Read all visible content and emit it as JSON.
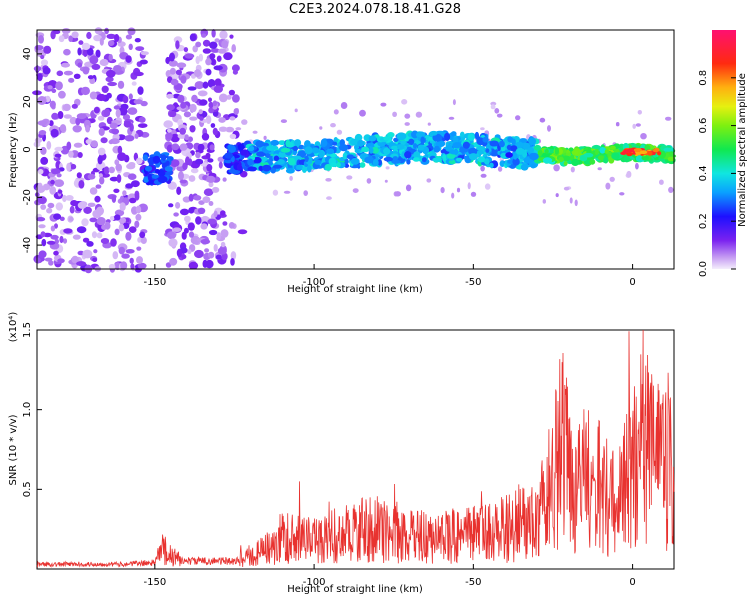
{
  "title": "C2E3.2024.078.18.41.G28",
  "chart_data": [
    {
      "type": "heatmap",
      "xlabel": "Height of straight line (km)",
      "ylabel": "Frequency (Hz)",
      "xlim": [
        -187,
        13
      ],
      "ylim": [
        -50,
        50
      ],
      "xticks": [
        -150,
        -100,
        -50,
        0
      ],
      "yticks": [
        -40,
        -20,
        0,
        20,
        40
      ],
      "colorbar": {
        "label": "Normalized spectral amplitude",
        "ticks": [
          "0.0",
          "0.2",
          "0.4",
          "0.6",
          "0.8"
        ],
        "range": [
          0,
          1
        ]
      },
      "band_center": [
        {
          "x": -150,
          "y": -8
        },
        {
          "x": -120,
          "y": -3
        },
        {
          "x": -100,
          "y": -3
        },
        {
          "x": -80,
          "y": 0
        },
        {
          "x": -60,
          "y": 1
        },
        {
          "x": -40,
          "y": -1
        },
        {
          "x": -20,
          "y": -3
        },
        {
          "x": 0,
          "y": -1
        },
        {
          "x": 13,
          "y": -2
        }
      ],
      "peak_x": 0
    },
    {
      "type": "line",
      "xlabel": "Height of straight line (km)",
      "ylabel": "SNR (10 * v/v)",
      "y_multiplier": "(x10⁴)",
      "xlim": [
        -187,
        13
      ],
      "ylim": [
        0,
        1.5
      ],
      "xticks": [
        -150,
        -100,
        -50,
        0
      ],
      "yticks": [
        "0.5",
        "1.0",
        "1.5"
      ],
      "series": [
        {
          "color": "#e8322f",
          "points": [
            [
              -187,
              0.03
            ],
            [
              -160,
              0.03
            ],
            [
              -150,
              0.04
            ],
            [
              -147,
              0.14
            ],
            [
              -145,
              0.08
            ],
            [
              -140,
              0.05
            ],
            [
              -125,
              0.05
            ],
            [
              -115,
              0.12
            ],
            [
              -110,
              0.2
            ],
            [
              -100,
              0.18
            ],
            [
              -90,
              0.22
            ],
            [
              -85,
              0.25
            ],
            [
              -80,
              0.25
            ],
            [
              -75,
              0.22
            ],
            [
              -70,
              0.2
            ],
            [
              -60,
              0.2
            ],
            [
              -50,
              0.22
            ],
            [
              -40,
              0.25
            ],
            [
              -30,
              0.3
            ],
            [
              -25,
              0.55
            ],
            [
              -22,
              0.8
            ],
            [
              -20,
              0.6
            ],
            [
              -15,
              0.55
            ],
            [
              -10,
              0.5
            ],
            [
              -5,
              0.4
            ],
            [
              0,
              0.6
            ],
            [
              3,
              0.8
            ],
            [
              6,
              0.75
            ],
            [
              9,
              0.6
            ],
            [
              11,
              0.7
            ],
            [
              13,
              0.5
            ]
          ]
        }
      ]
    }
  ]
}
